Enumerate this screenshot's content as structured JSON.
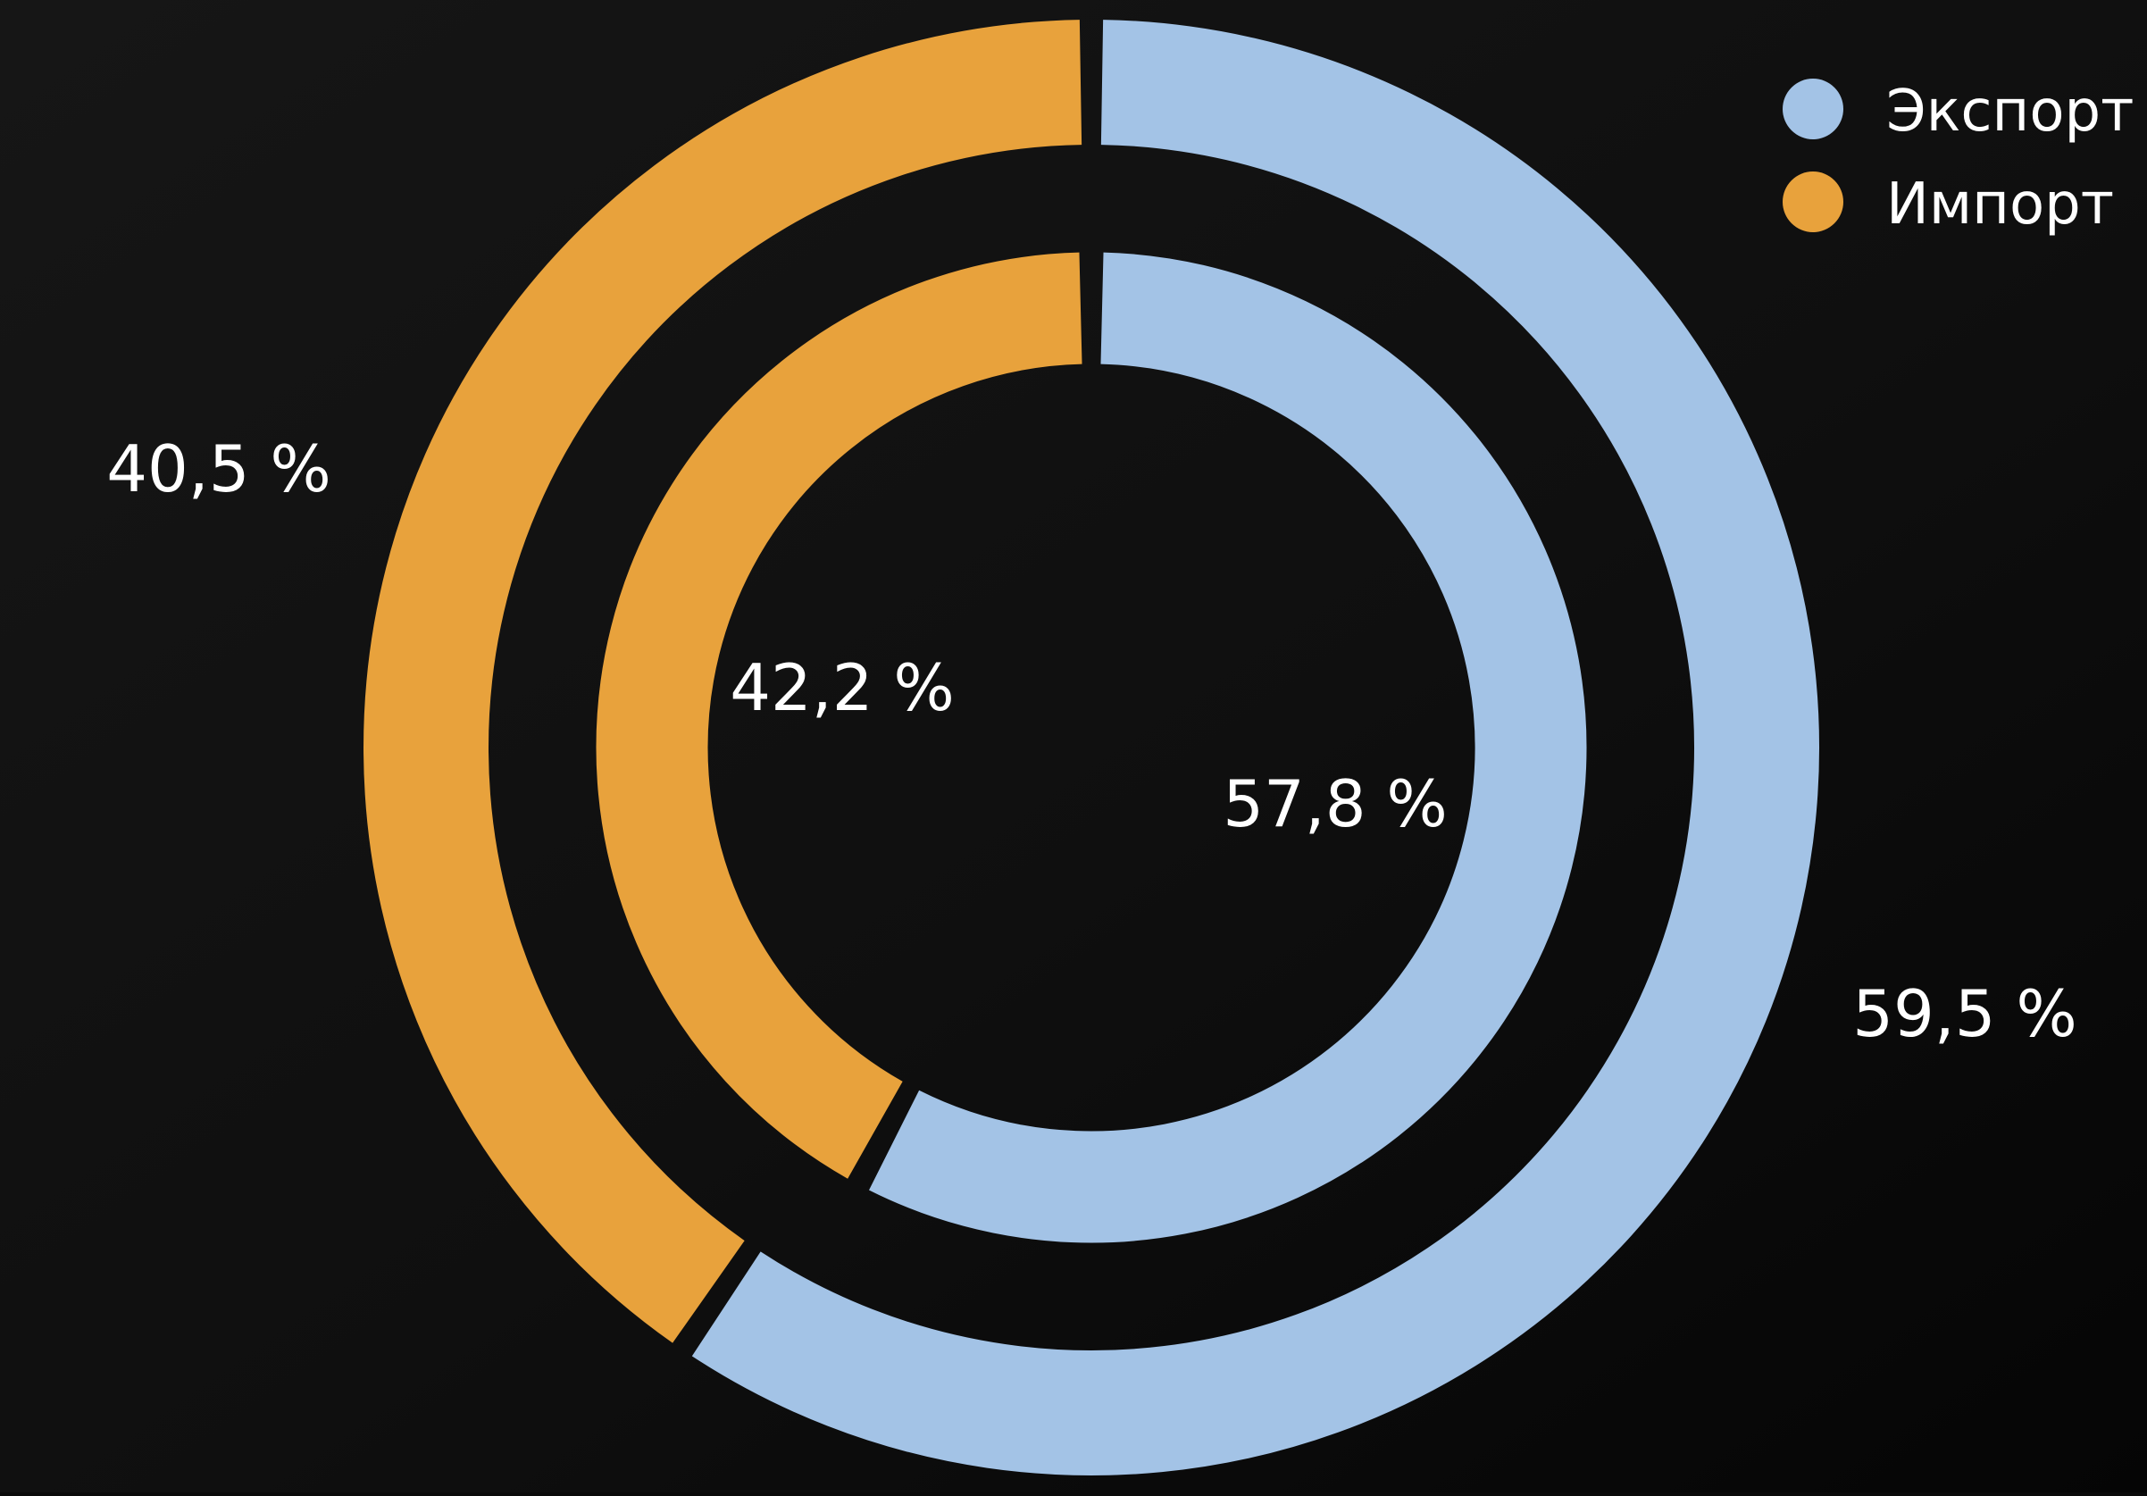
{
  "chart_data": {
    "type": "pie",
    "variant": "nested-donut",
    "legend": {
      "position": "top-right",
      "entries": [
        {
          "label": "Экспорт",
          "color": "#a3c3e6"
        },
        {
          "label": "Импорт",
          "color": "#e8a23c"
        }
      ]
    },
    "rings": [
      {
        "ring": "outer",
        "slices": [
          {
            "name": "Экспорт",
            "value": 59.5,
            "label": "59,5 %",
            "color": "#a3c3e6"
          },
          {
            "name": "Импорт",
            "value": 40.5,
            "label": "40,5 %",
            "color": "#e8a23c"
          }
        ]
      },
      {
        "ring": "inner",
        "slices": [
          {
            "name": "Экспорт",
            "value": 57.8,
            "label": "57,8 %",
            "color": "#a3c3e6"
          },
          {
            "name": "Импорт",
            "value": 42.2,
            "label": "42,2 %",
            "color": "#e8a23c"
          }
        ]
      }
    ]
  },
  "colors": {
    "background": "#0a0a0a",
    "background_light": "#151515",
    "text": "#ffffff"
  }
}
